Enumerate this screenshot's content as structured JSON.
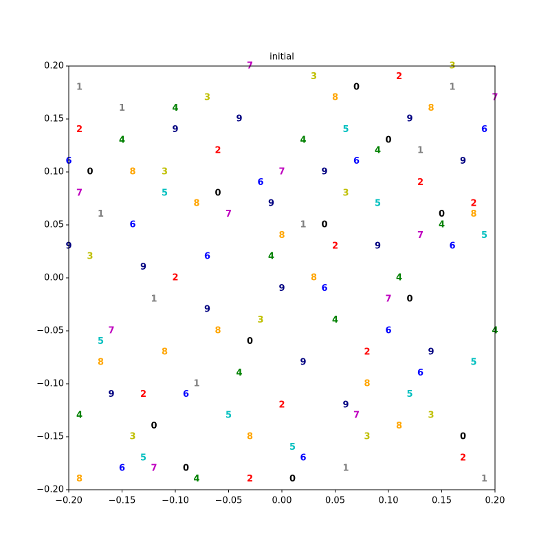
{
  "chart_data": {
    "type": "text-scatter",
    "title": "initial",
    "xlim": [
      -0.2,
      0.2
    ],
    "ylim": [
      -0.2,
      0.2
    ],
    "xticks": [
      {
        "value": -0.2,
        "label": "−0.20"
      },
      {
        "value": -0.15,
        "label": "−0.15"
      },
      {
        "value": -0.1,
        "label": "−0.10"
      },
      {
        "value": -0.05,
        "label": "−0.05"
      },
      {
        "value": 0,
        "label": "0.00"
      },
      {
        "value": 0.05,
        "label": "0.05"
      },
      {
        "value": 0.1,
        "label": "0.10"
      },
      {
        "value": 0.15,
        "label": "0.15"
      },
      {
        "value": 0.2,
        "label": "0.20"
      }
    ],
    "yticks": [
      {
        "value": -0.2,
        "label": "−0.20"
      },
      {
        "value": -0.15,
        "label": "−0.15"
      },
      {
        "value": -0.1,
        "label": "−0.10"
      },
      {
        "value": -0.05,
        "label": "−0.05"
      },
      {
        "value": 0,
        "label": "0.00"
      },
      {
        "value": 0.05,
        "label": "0.05"
      },
      {
        "value": 0.1,
        "label": "0.10"
      },
      {
        "value": 0.15,
        "label": "0.15"
      },
      {
        "value": 0.2,
        "label": "0.20"
      }
    ],
    "series": [
      {
        "name": "0",
        "color": "#000000",
        "x": [
          -0.18,
          -0.12,
          -0.06,
          0.01,
          0.07,
          0.12,
          0.17,
          -0.09,
          0.04,
          0.15,
          -0.03,
          0.1
        ],
        "y": [
          0.1,
          -0.14,
          0.08,
          -0.19,
          0.18,
          -0.02,
          -0.15,
          -0.18,
          0.05,
          0.06,
          -0.06,
          0.13
        ]
      },
      {
        "name": "1",
        "color": "#808080",
        "x": [
          -0.19,
          -0.17,
          -0.15,
          -0.08,
          0.06,
          0.13,
          0.19,
          0.02,
          -0.12,
          0.16
        ],
        "y": [
          0.18,
          0.06,
          0.16,
          -0.1,
          -0.18,
          0.12,
          -0.19,
          0.05,
          -0.02,
          0.18
        ]
      },
      {
        "name": "2",
        "color": "#ff0000",
        "x": [
          -0.19,
          -0.13,
          -0.06,
          0,
          0.05,
          0.11,
          0.17,
          0.08,
          -0.1,
          0.13,
          -0.03,
          0.18
        ],
        "y": [
          0.14,
          -0.11,
          0.12,
          -0.12,
          0.03,
          0.19,
          -0.17,
          -0.07,
          0,
          0.09,
          -0.19,
          0.07
        ]
      },
      {
        "name": "3",
        "color": "#bfbf00",
        "x": [
          -0.18,
          -0.14,
          -0.07,
          0.03,
          0.08,
          0.14,
          0.16,
          -0.11,
          0.06,
          -0.02
        ],
        "y": [
          0.02,
          -0.15,
          0.17,
          0.19,
          -0.15,
          -0.13,
          0.2,
          0.1,
          0.08,
          -0.04
        ]
      },
      {
        "name": "4",
        "color": "#008000",
        "x": [
          -0.19,
          -0.15,
          -0.1,
          -0.04,
          0.02,
          0.09,
          0.15,
          0.2,
          -0.08,
          0.05,
          0.11,
          -0.01
        ],
        "y": [
          -0.13,
          0.13,
          0.16,
          -0.09,
          0.13,
          0.12,
          0.05,
          -0.05,
          -0.19,
          -0.04,
          0,
          0.02
        ]
      },
      {
        "name": "5",
        "color": "#00bfbf",
        "x": [
          -0.17,
          -0.11,
          -0.05,
          0.01,
          0.06,
          0.12,
          0.19,
          -0.13,
          0.09,
          0.18
        ],
        "y": [
          -0.06,
          0.08,
          -0.13,
          -0.16,
          0.14,
          -0.11,
          0.04,
          -0.17,
          0.07,
          -0.08
        ]
      },
      {
        "name": "6",
        "color": "#0000ff",
        "x": [
          -0.2,
          -0.14,
          -0.07,
          -0.02,
          0.04,
          0.1,
          0.16,
          0.19,
          -0.09,
          0.02,
          0.07,
          -0.15,
          0.13
        ],
        "y": [
          0.11,
          0.05,
          0.02,
          0.09,
          -0.01,
          -0.05,
          0.03,
          0.14,
          -0.11,
          -0.17,
          0.11,
          -0.18,
          -0.09
        ]
      },
      {
        "name": "7",
        "color": "#bf00bf",
        "x": [
          -0.19,
          -0.12,
          -0.05,
          0,
          0.07,
          0.13,
          0.2,
          -0.16,
          0.1,
          -0.03
        ],
        "y": [
          0.08,
          -0.18,
          0.06,
          0.1,
          -0.13,
          0.04,
          0.17,
          -0.05,
          -0.02,
          0.2
        ]
      },
      {
        "name": "8",
        "color": "#ffa500",
        "x": [
          -0.19,
          -0.14,
          -0.08,
          -0.03,
          0.03,
          0.08,
          0.14,
          0.18,
          -0.11,
          0.05,
          0,
          -0.06,
          0.11,
          -0.17
        ],
        "y": [
          -0.19,
          0.1,
          0.07,
          -0.15,
          0,
          -0.1,
          0.16,
          0.06,
          -0.07,
          0.17,
          0.04,
          -0.05,
          -0.14,
          -0.08
        ]
      },
      {
        "name": "9",
        "color": "#000080",
        "x": [
          -0.2,
          -0.13,
          -0.07,
          -0.01,
          0.04,
          0.09,
          0.14,
          0.17,
          -0.1,
          0.02,
          0.06,
          -0.04,
          0.12,
          -0.16,
          0
        ],
        "y": [
          0.03,
          0.01,
          -0.03,
          0.07,
          0.1,
          0.03,
          -0.07,
          0.11,
          0.14,
          -0.08,
          -0.12,
          0.15,
          0.15,
          -0.11,
          -0.01
        ]
      }
    ]
  }
}
